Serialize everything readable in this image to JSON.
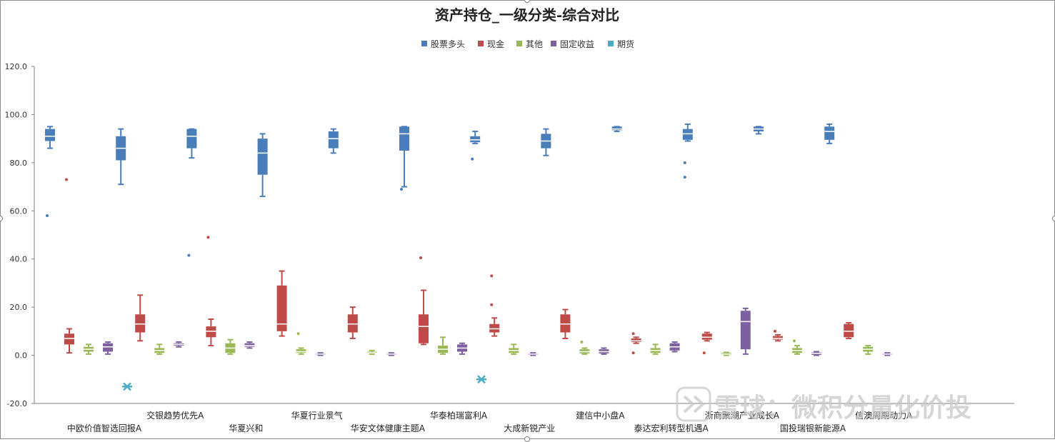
{
  "chart_data": {
    "type": "boxplot",
    "title": "资产持仓_一级分类-综合对比",
    "legend_position": "top",
    "ylim": [
      -20,
      120
    ],
    "yticks": [
      "120.0",
      "100.0",
      "80.0",
      "60.0",
      "40.0",
      "20.0",
      "0.0",
      "-20.0"
    ],
    "ytick_values": [
      120,
      100,
      80,
      60,
      40,
      20,
      0,
      -20
    ],
    "grid": false,
    "categories": [
      "中欧价值智选回报A",
      "交银趋势优先A",
      "华夏兴和",
      "华夏行业景气",
      "华安文体健康主题A",
      "华泰柏瑞富利A",
      "大成新锐产业",
      "建信中小盘A",
      "泰达宏利转型机遇A",
      "浙商聚潮产业成长A",
      "国投瑞银新能源A",
      "信澳周期动力A"
    ],
    "series": [
      {
        "name": "股票多头",
        "color": "#4a7ebb",
        "boxes": [
          {
            "min": 86,
            "q1": 89,
            "median": 91,
            "q3": 94,
            "max": 95,
            "outliers": [
              58
            ]
          },
          {
            "min": 71,
            "q1": 81,
            "median": 86,
            "q3": 91,
            "max": 94,
            "outliers": []
          },
          {
            "min": 82,
            "q1": 86,
            "median": 91,
            "q3": 94,
            "max": 94,
            "outliers": [
              41.5
            ]
          },
          {
            "min": 66,
            "q1": 75,
            "median": 84,
            "q3": 90,
            "max": 92,
            "outliers": []
          },
          {
            "min": 84,
            "q1": 86,
            "median": 90,
            "q3": 93,
            "max": 94,
            "outliers": []
          },
          {
            "min": 70,
            "q1": 85,
            "median": 92,
            "q3": 95,
            "max": 95,
            "outliers": [
              69
            ]
          },
          {
            "min": 88,
            "q1": 88.5,
            "median": 89.5,
            "q3": 91,
            "max": 93,
            "outliers": [
              81.5
            ]
          },
          {
            "min": 83,
            "q1": 86,
            "median": 89,
            "q3": 92,
            "max": 94,
            "outliers": []
          },
          {
            "min": 93,
            "q1": 93.5,
            "median": 94,
            "q3": 95,
            "max": 95,
            "outliers": []
          },
          {
            "min": 89,
            "q1": 89.5,
            "median": 92,
            "q3": 94,
            "max": 96,
            "outliers": [
              80,
              74
            ]
          },
          {
            "min": 92,
            "q1": 93,
            "median": 94,
            "q3": 95,
            "max": 95,
            "outliers": []
          },
          {
            "min": 88,
            "q1": 89.5,
            "median": 93,
            "q3": 95,
            "max": 96,
            "outliers": []
          }
        ]
      },
      {
        "name": "现金",
        "color": "#be4b48",
        "boxes": [
          {
            "min": 1,
            "q1": 4.5,
            "median": 7,
            "q3": 9,
            "max": 11,
            "outliers": [
              73
            ]
          },
          {
            "min": 6,
            "q1": 9.5,
            "median": 13,
            "q3": 17,
            "max": 25,
            "outliers": []
          },
          {
            "min": 4,
            "q1": 7.5,
            "median": 10,
            "q3": 12,
            "max": 15,
            "outliers": [
              49
            ]
          },
          {
            "min": 8,
            "q1": 10,
            "median": 13,
            "q3": 29,
            "max": 35,
            "outliers": []
          },
          {
            "min": 7,
            "q1": 9.5,
            "median": 13,
            "q3": 17,
            "max": 20,
            "outliers": []
          },
          {
            "min": 4.5,
            "q1": 5,
            "median": 12,
            "q3": 17,
            "max": 27,
            "outliers": [
              40.5
            ]
          },
          {
            "min": 8,
            "q1": 9.5,
            "median": 11,
            "q3": 13,
            "max": 15.5,
            "outliers": [
              21,
              33
            ]
          },
          {
            "min": 7,
            "q1": 9.5,
            "median": 13,
            "q3": 17,
            "max": 19,
            "outliers": []
          },
          {
            "min": 5,
            "q1": 5.5,
            "median": 6,
            "q3": 7,
            "max": 7.5,
            "outliers": [
              1,
              9
            ]
          },
          {
            "min": 6,
            "q1": 6.5,
            "median": 7.5,
            "q3": 9,
            "max": 9.5,
            "outliers": [
              1
            ]
          },
          {
            "min": 6,
            "q1": 6.5,
            "median": 7,
            "q3": 8,
            "max": 8.5,
            "outliers": [
              10
            ]
          },
          {
            "min": 7,
            "q1": 7.5,
            "median": 10,
            "q3": 13,
            "max": 13.5,
            "outliers": []
          }
        ]
      },
      {
        "name": "其他",
        "color": "#98b954",
        "boxes": [
          {
            "min": 0.5,
            "q1": 1.5,
            "median": 2.5,
            "q3": 3.5,
            "max": 4.5,
            "outliers": []
          },
          {
            "min": 0.5,
            "q1": 1,
            "median": 2,
            "q3": 3,
            "max": 4.5,
            "outliers": []
          },
          {
            "min": 0.5,
            "q1": 1,
            "median": 3,
            "q3": 5,
            "max": 6.5,
            "outliers": []
          },
          {
            "min": 0.5,
            "q1": 1,
            "median": 1.5,
            "q3": 2.5,
            "max": 3,
            "outliers": [
              9
            ]
          },
          {
            "min": 0.5,
            "q1": 0.8,
            "median": 1,
            "q3": 1.5,
            "max": 2,
            "outliers": []
          },
          {
            "min": 0.5,
            "q1": 1,
            "median": 2.5,
            "q3": 4,
            "max": 7.5,
            "outliers": []
          },
          {
            "min": 0.5,
            "q1": 1,
            "median": 2,
            "q3": 3,
            "max": 4.5,
            "outliers": []
          },
          {
            "min": 0.5,
            "q1": 0.8,
            "median": 1.5,
            "q3": 2.5,
            "max": 3,
            "outliers": [
              5.5
            ]
          },
          {
            "min": 0.5,
            "q1": 1,
            "median": 2,
            "q3": 3,
            "max": 4.5,
            "outliers": []
          },
          {
            "min": 0,
            "q1": 0.2,
            "median": 0.5,
            "q3": 1,
            "max": 1.2,
            "outliers": []
          },
          {
            "min": 0.5,
            "q1": 1,
            "median": 2,
            "q3": 3,
            "max": 4,
            "outliers": [
              6
            ]
          },
          {
            "min": 0.5,
            "q1": 1.5,
            "median": 2.5,
            "q3": 3.5,
            "max": 4,
            "outliers": []
          }
        ]
      },
      {
        "name": "固定收益",
        "color": "#7d60a0",
        "boxes": [
          {
            "min": 0.5,
            "q1": 1.5,
            "median": 3.5,
            "q3": 5,
            "max": 5.5,
            "outliers": []
          },
          {
            "min": 3.5,
            "q1": 4,
            "median": 4.5,
            "q3": 5,
            "max": 5.5,
            "outliers": []
          },
          {
            "min": 3,
            "q1": 3.5,
            "median": 4,
            "q3": 5,
            "max": 5.5,
            "outliers": []
          },
          {
            "min": 0,
            "q1": 0.2,
            "median": 0.5,
            "q3": 0.8,
            "max": 1,
            "outliers": []
          },
          {
            "min": 0,
            "q1": 0.2,
            "median": 0.5,
            "q3": 0.8,
            "max": 1,
            "outliers": []
          },
          {
            "min": 0.5,
            "q1": 1.5,
            "median": 3,
            "q3": 4.5,
            "max": 5,
            "outliers": []
          },
          {
            "min": 0,
            "q1": 0.2,
            "median": 0.5,
            "q3": 0.8,
            "max": 1,
            "outliers": []
          },
          {
            "min": 0.5,
            "q1": 0.8,
            "median": 1.5,
            "q3": 2.5,
            "max": 3,
            "outliers": []
          },
          {
            "min": 1.5,
            "q1": 2,
            "median": 3.5,
            "q3": 5,
            "max": 5.5,
            "outliers": []
          },
          {
            "min": 0.5,
            "q1": 2.5,
            "median": 14,
            "q3": 18.5,
            "max": 19.5,
            "outliers": []
          },
          {
            "min": 0,
            "q1": 0.2,
            "median": 0.8,
            "q3": 1.2,
            "max": 1.5,
            "outliers": []
          },
          {
            "min": 0,
            "q1": 0.2,
            "median": 0.5,
            "q3": 0.8,
            "max": 1,
            "outliers": []
          }
        ]
      },
      {
        "name": "期货",
        "color": "#4bacc6",
        "boxes": [
          {
            "min": -13,
            "q1": -13,
            "median": -13,
            "q3": -13,
            "max": -13,
            "outliers": []
          },
          null,
          null,
          null,
          null,
          {
            "min": -10,
            "q1": -10,
            "median": -10,
            "q3": -10,
            "max": -10,
            "outliers": []
          },
          null,
          null,
          null,
          null,
          null,
          null
        ]
      }
    ]
  },
  "watermark": {
    "text": "雪球：微积分量化价投",
    "color": "#c8c8c8"
  }
}
